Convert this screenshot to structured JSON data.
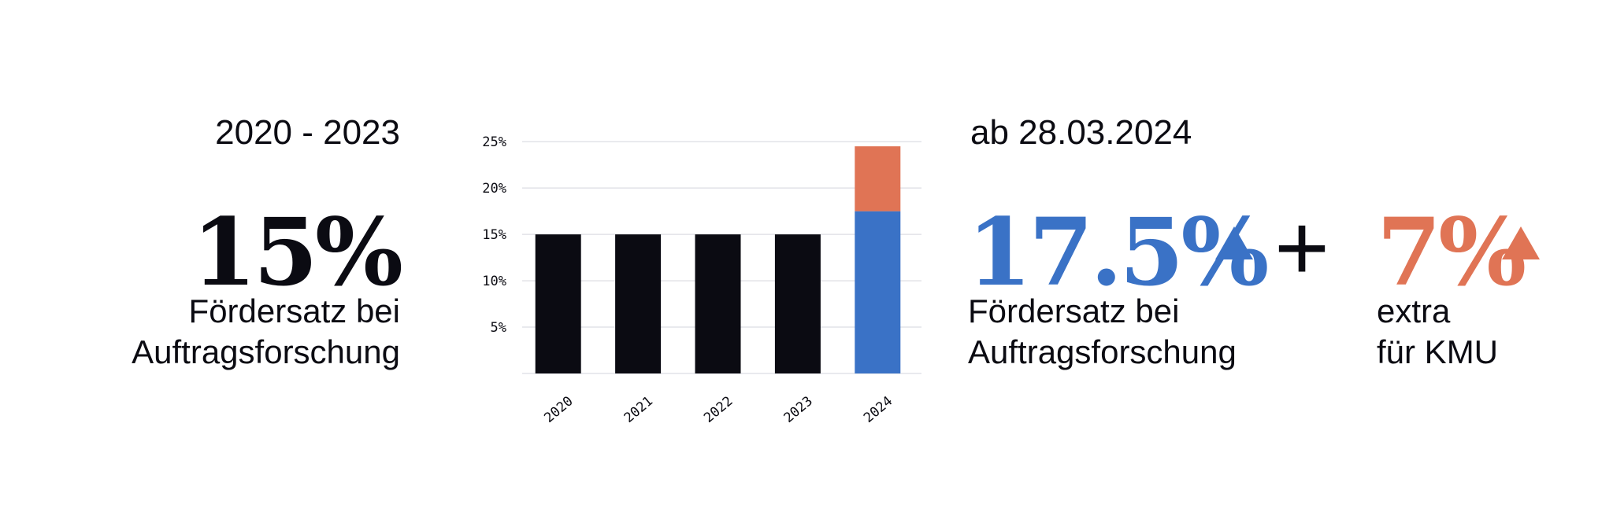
{
  "left": {
    "period": "2020 - 2023",
    "rate": "15%",
    "desc_line1": "Fördersatz bei",
    "desc_line2": "Auftragsforschung"
  },
  "right": {
    "period": "ab 28.03.2024",
    "rate": "17.5%",
    "desc_line1": "Fördersatz bei",
    "desc_line2": "Auftragsforschung",
    "plus": "+",
    "extra_rate": "7%",
    "extra_line1": "extra",
    "extra_line2": "für KMU"
  },
  "colors": {
    "text": "#0b0b12",
    "blue": "#3a72c6",
    "orange": "#e07455",
    "gridline": "#e2e3e8"
  },
  "chart_data": {
    "type": "bar",
    "stacked": true,
    "categories": [
      "2020",
      "2021",
      "2022",
      "2023",
      "2024"
    ],
    "series": [
      {
        "values": [
          15,
          15,
          15,
          15,
          0
        ],
        "color": "#0b0b12"
      },
      {
        "values": [
          0,
          0,
          0,
          0,
          17.5
        ],
        "color": "#3a72c6"
      },
      {
        "values": [
          0,
          0,
          0,
          0,
          7
        ],
        "color": "#e07455"
      }
    ],
    "yticks": [
      "5%",
      "10%",
      "15%",
      "20%",
      "25%"
    ],
    "ytick_values": [
      5,
      10,
      15,
      20,
      25
    ],
    "ylim": [
      0,
      25
    ],
    "grid": true,
    "xlabel_rotation": "diagonal"
  }
}
